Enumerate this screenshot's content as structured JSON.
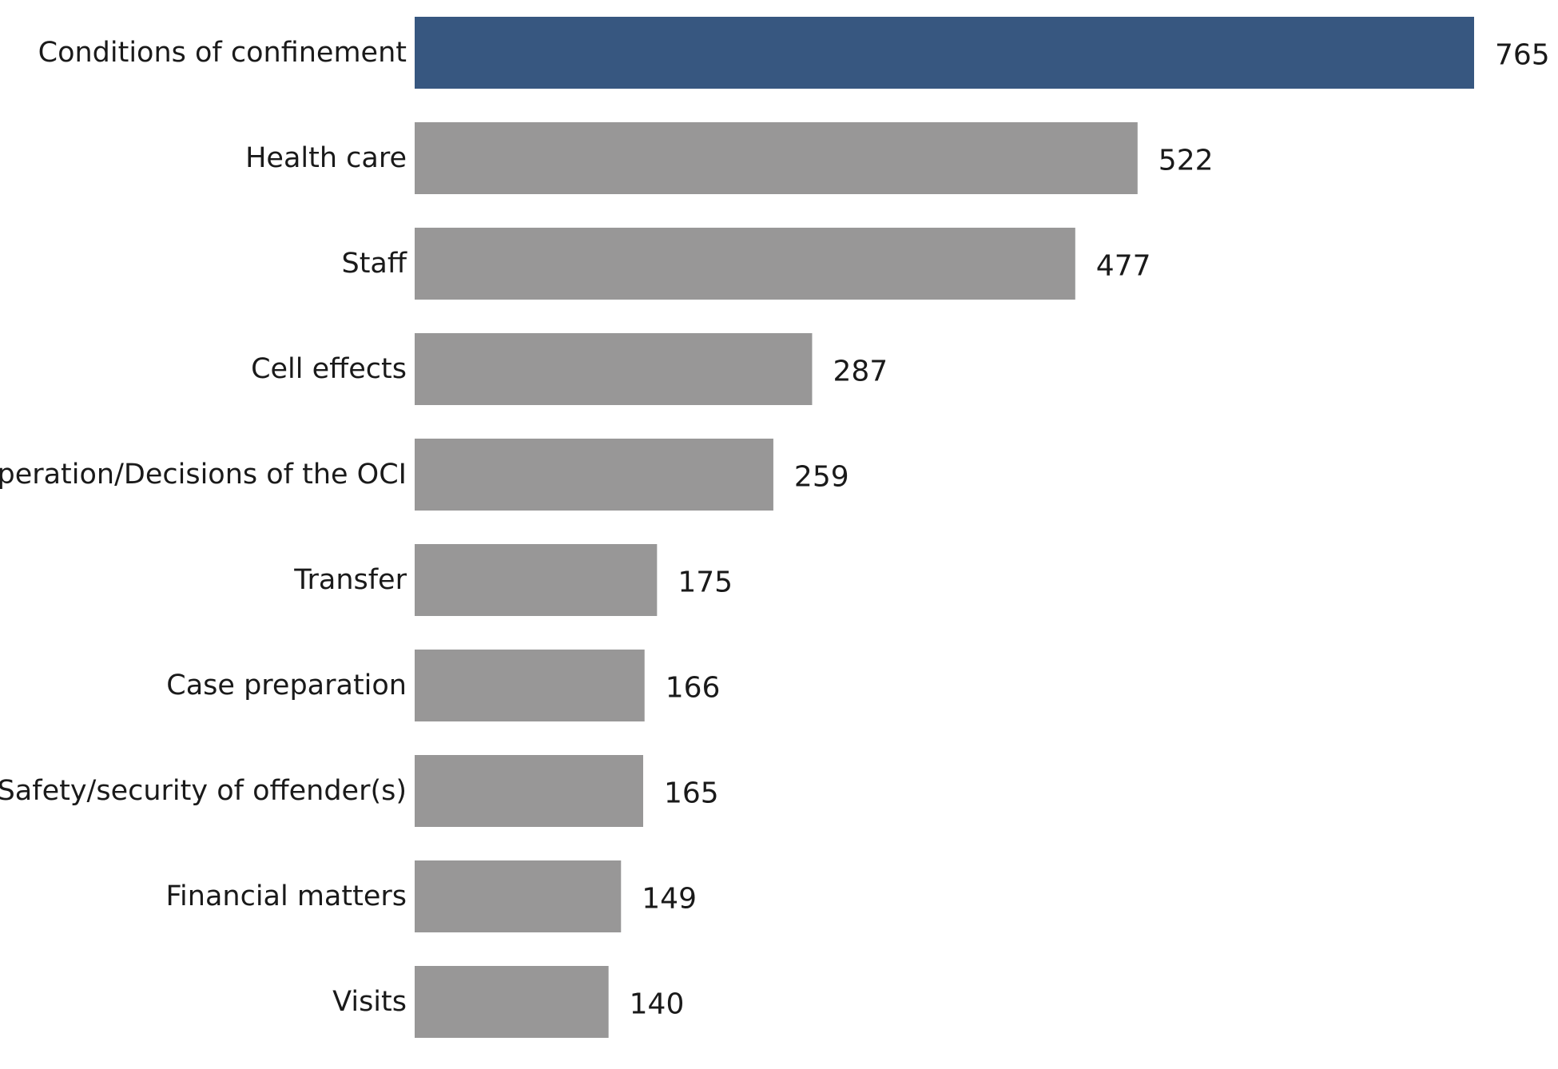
{
  "chart_data": {
    "type": "bar",
    "orientation": "horizontal",
    "title": "",
    "xlabel": "",
    "ylabel": "",
    "categories": [
      "Conditions of confinement",
      "Health care",
      "Staff",
      "Cell effects",
      "Operation/Decisions of the OCI",
      "Transfer",
      "Case preparation",
      "Safety/security of offender(s)",
      "Financial matters",
      "Visits"
    ],
    "values": [
      765,
      522,
      477,
      287,
      259,
      175,
      166,
      165,
      149,
      140
    ],
    "xlim": [
      0,
      765
    ],
    "grid": false,
    "legend": "none",
    "data_labels": true,
    "colors": {
      "highlight": "#375780",
      "default": "#989797"
    },
    "highlight_index": 0
  }
}
